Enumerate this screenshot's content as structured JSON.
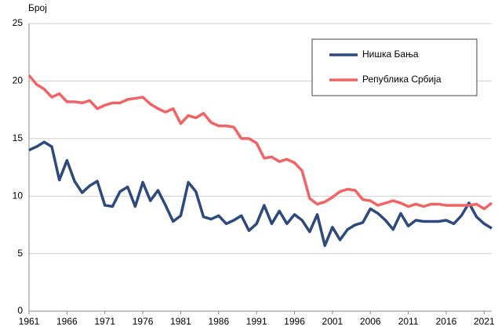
{
  "chart_data": {
    "type": "line",
    "ylabel": "Број",
    "x": [
      1961,
      1962,
      1963,
      1964,
      1965,
      1966,
      1967,
      1968,
      1969,
      1970,
      1971,
      1972,
      1973,
      1974,
      1975,
      1976,
      1977,
      1978,
      1979,
      1980,
      1981,
      1982,
      1983,
      1984,
      1985,
      1986,
      1987,
      1988,
      1989,
      1990,
      1991,
      1992,
      1993,
      1994,
      1995,
      1996,
      1997,
      1998,
      1999,
      2000,
      2001,
      2002,
      2003,
      2004,
      2005,
      2006,
      2007,
      2008,
      2009,
      2010,
      2011,
      2012,
      2013,
      2014,
      2015,
      2016,
      2017,
      2018,
      2019,
      2020,
      2021,
      2022
    ],
    "series": [
      {
        "name": "Нишка Бања",
        "color": "#2e4a7d",
        "values": [
          14.0,
          14.3,
          14.7,
          14.3,
          11.4,
          13.1,
          11.3,
          10.3,
          10.9,
          11.3,
          9.2,
          9.1,
          10.4,
          10.8,
          9.1,
          11.2,
          9.6,
          10.5,
          9.2,
          7.8,
          8.3,
          11.2,
          10.4,
          8.2,
          8.0,
          8.3,
          7.6,
          7.9,
          8.3,
          7.0,
          7.6,
          9.2,
          7.6,
          8.7,
          7.6,
          8.4,
          7.9,
          6.9,
          8.4,
          5.7,
          7.3,
          6.2,
          7.1,
          7.5,
          7.7,
          8.9,
          8.5,
          7.9,
          7.1,
          8.5,
          7.4,
          7.9,
          7.8,
          7.8,
          7.8,
          7.9,
          7.6,
          8.3,
          9.4,
          8.2,
          7.6,
          7.2
        ]
      },
      {
        "name": "Република Србија",
        "color": "#f06466",
        "values": [
          20.5,
          19.7,
          19.3,
          18.6,
          18.9,
          18.2,
          18.2,
          18.1,
          18.3,
          17.6,
          17.9,
          18.1,
          18.1,
          18.4,
          18.5,
          18.6,
          18.0,
          17.6,
          17.3,
          17.6,
          16.3,
          17.0,
          16.8,
          17.2,
          16.4,
          16.1,
          16.1,
          16.0,
          15.0,
          15.0,
          14.6,
          13.3,
          13.4,
          13.0,
          13.2,
          12.9,
          12.2,
          9.8,
          9.3,
          9.5,
          9.9,
          10.4,
          10.6,
          10.5,
          9.7,
          9.6,
          9.2,
          9.4,
          9.6,
          9.4,
          9.1,
          9.3,
          9.1,
          9.3,
          9.3,
          9.2,
          9.2,
          9.2,
          9.2,
          9.3,
          8.9,
          9.4
        ]
      }
    ],
    "xlim": [
      1961,
      2022
    ],
    "xticks": [
      1961,
      1966,
      1971,
      1976,
      1981,
      1986,
      1991,
      1996,
      2001,
      2006,
      2011,
      2016,
      2021
    ],
    "ylim": [
      0,
      25
    ],
    "yticks": [
      0,
      5,
      10,
      15,
      20,
      25
    ],
    "grid": true,
    "legend": "upper right"
  }
}
